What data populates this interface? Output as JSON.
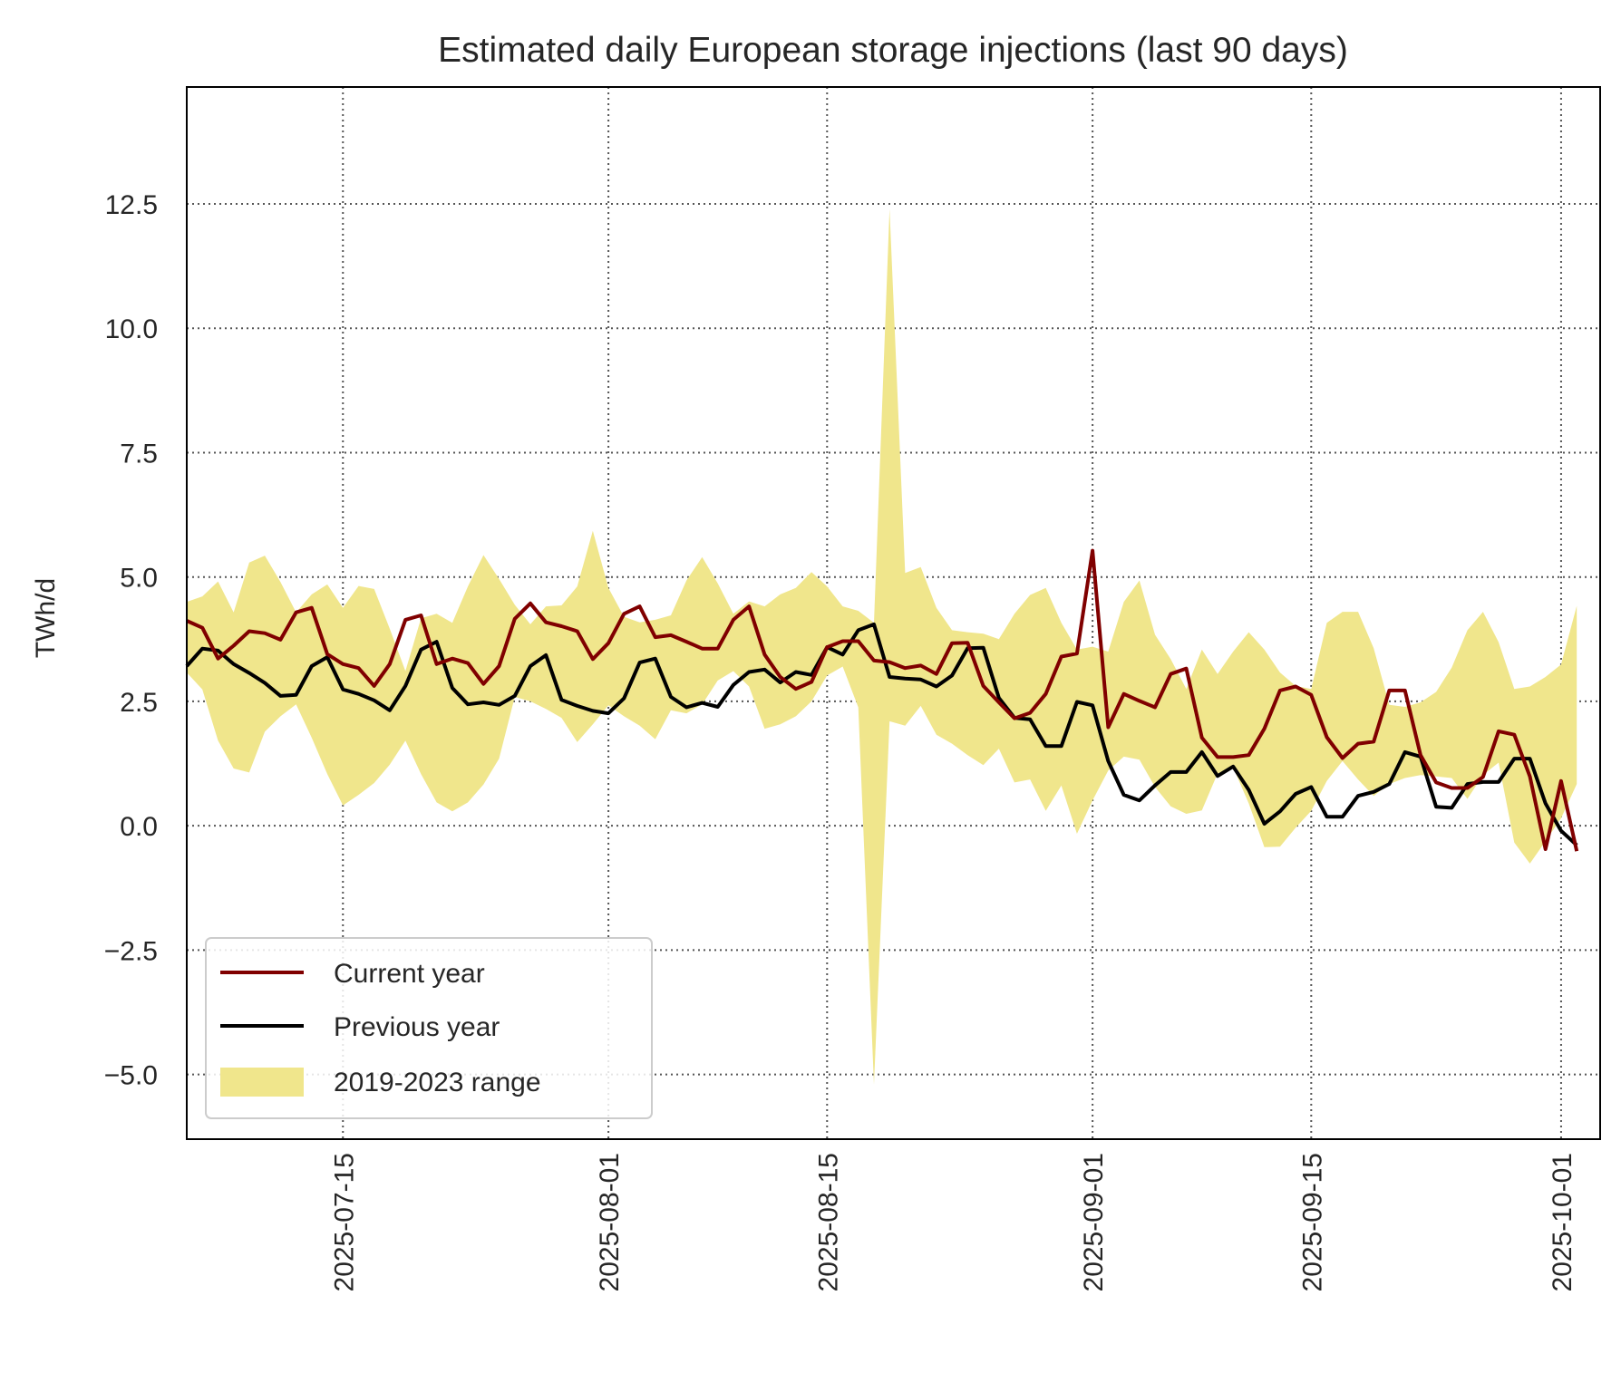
{
  "chart_data": {
    "type": "line",
    "title": "Estimated daily European storage injections (last 90 days)",
    "xlabel": "",
    "ylabel": "TWh/d",
    "xlim": [
      "2025-07-05",
      "2025-10-03"
    ],
    "ylim": [
      -6.3,
      14.85
    ],
    "grid": true,
    "legend_position": "lower-left",
    "x_ticks": [
      "2025-07-15",
      "2025-08-01",
      "2025-08-15",
      "2025-09-01",
      "2025-09-15",
      "2025-10-01"
    ],
    "y_ticks": [
      -5.0,
      -2.5,
      0.0,
      2.5,
      5.0,
      7.5,
      10.0,
      12.5
    ],
    "y_tick_labels": [
      "−5.0",
      "−2.5",
      "0.0",
      "2.5",
      "5.0",
      "7.5",
      "10.0",
      "12.5"
    ],
    "x_start": "2025-07-05",
    "x_step_days": 1,
    "series": [
      {
        "name": "Current year",
        "kind": "line",
        "color": "#800000",
        "values": [
          4.12,
          3.98,
          3.36,
          3.62,
          3.91,
          3.87,
          3.74,
          4.29,
          4.38,
          3.45,
          3.25,
          3.17,
          2.81,
          3.25,
          4.14,
          4.23,
          3.25,
          3.36,
          3.27,
          2.85,
          3.21,
          4.16,
          4.47,
          4.09,
          4.01,
          3.91,
          3.35,
          3.67,
          4.26,
          4.41,
          3.79,
          3.83,
          3.7,
          3.56,
          3.56,
          4.14,
          4.41,
          3.44,
          2.99,
          2.75,
          2.89,
          3.59,
          3.71,
          3.71,
          3.32,
          3.29,
          3.17,
          3.22,
          3.05,
          3.67,
          3.68,
          2.81,
          2.48,
          2.16,
          2.27,
          2.65,
          3.4,
          3.46,
          5.53,
          1.98,
          2.65,
          2.51,
          2.38,
          3.05,
          3.16,
          1.77,
          1.38,
          1.38,
          1.42,
          1.95,
          2.72,
          2.8,
          2.63,
          1.78,
          1.36,
          1.65,
          1.69,
          2.72,
          2.72,
          1.42,
          0.87,
          0.76,
          0.76,
          0.98,
          1.9,
          1.83,
          0.99,
          -0.47,
          0.9,
          -0.51
        ]
      },
      {
        "name": "Previous year",
        "kind": "line",
        "color": "#000000",
        "values": [
          3.21,
          3.56,
          3.52,
          3.25,
          3.07,
          2.87,
          2.61,
          2.63,
          3.21,
          3.39,
          2.74,
          2.65,
          2.52,
          2.32,
          2.81,
          3.54,
          3.7,
          2.77,
          2.44,
          2.48,
          2.43,
          2.61,
          3.21,
          3.43,
          2.53,
          2.41,
          2.31,
          2.26,
          2.56,
          3.28,
          3.36,
          2.59,
          2.38,
          2.47,
          2.39,
          2.83,
          3.09,
          3.14,
          2.88,
          3.09,
          3.03,
          3.59,
          3.44,
          3.93,
          4.05,
          2.99,
          2.96,
          2.94,
          2.8,
          3.02,
          3.57,
          3.58,
          2.57,
          2.17,
          2.14,
          1.6,
          1.6,
          2.49,
          2.42,
          1.3,
          0.62,
          0.51,
          0.81,
          1.08,
          1.08,
          1.48,
          1.0,
          1.19,
          0.72,
          0.04,
          0.29,
          0.64,
          0.78,
          0.18,
          0.18,
          0.6,
          0.68,
          0.84,
          1.48,
          1.39,
          0.38,
          0.36,
          0.84,
          0.88,
          0.88,
          1.35,
          1.35,
          0.45,
          -0.1,
          -0.39
        ]
      },
      {
        "name": "2019-2023 range",
        "kind": "band",
        "color": "#f0e68c",
        "low": [
          3.08,
          2.74,
          1.71,
          1.15,
          1.07,
          1.89,
          2.2,
          2.44,
          1.77,
          1.04,
          0.41,
          0.62,
          0.86,
          1.23,
          1.71,
          1.04,
          0.47,
          0.29,
          0.47,
          0.83,
          1.35,
          2.59,
          2.5,
          2.35,
          2.17,
          1.68,
          2.04,
          2.42,
          2.2,
          2.01,
          1.74,
          2.32,
          2.26,
          2.44,
          2.92,
          3.11,
          2.8,
          1.95,
          2.04,
          2.2,
          2.5,
          3.02,
          3.2,
          2.38,
          -5.2,
          2.1,
          2.01,
          2.41,
          1.83,
          1.65,
          1.42,
          1.22,
          1.55,
          0.87,
          0.93,
          0.3,
          0.81,
          -0.16,
          0.51,
          1.11,
          1.39,
          1.33,
          0.78,
          0.39,
          0.24,
          0.31,
          1.05,
          1.17,
          0.45,
          -0.43,
          -0.42,
          -0.04,
          0.3,
          0.9,
          1.3,
          0.93,
          0.6,
          0.84,
          0.96,
          1.02,
          0.99,
          0.96,
          0.54,
          1.02,
          1.27,
          -0.34,
          -0.76,
          -0.31,
          0.15,
          0.84
        ],
        "high": [
          4.5,
          4.61,
          4.91,
          4.29,
          5.29,
          5.43,
          4.9,
          4.29,
          4.65,
          4.85,
          4.38,
          4.82,
          4.76,
          3.96,
          3.11,
          4.17,
          4.26,
          4.08,
          4.81,
          5.44,
          4.96,
          4.44,
          4.05,
          4.41,
          4.43,
          4.81,
          5.93,
          4.78,
          4.2,
          4.09,
          4.14,
          4.23,
          4.93,
          5.4,
          4.87,
          4.26,
          4.51,
          4.41,
          4.65,
          4.78,
          5.1,
          4.81,
          4.41,
          4.32,
          4.08,
          12.4,
          5.08,
          5.2,
          4.38,
          3.93,
          3.89,
          3.86,
          3.75,
          4.26,
          4.64,
          4.78,
          4.08,
          3.54,
          3.6,
          3.5,
          4.5,
          4.93,
          3.84,
          3.35,
          2.75,
          3.54,
          3.05,
          3.5,
          3.89,
          3.54,
          3.08,
          2.81,
          2.75,
          4.08,
          4.3,
          4.3,
          3.57,
          2.43,
          2.39,
          2.48,
          2.69,
          3.18,
          3.93,
          4.3,
          3.69,
          2.75,
          2.8,
          2.99,
          3.24,
          4.42
        ]
      }
    ]
  }
}
